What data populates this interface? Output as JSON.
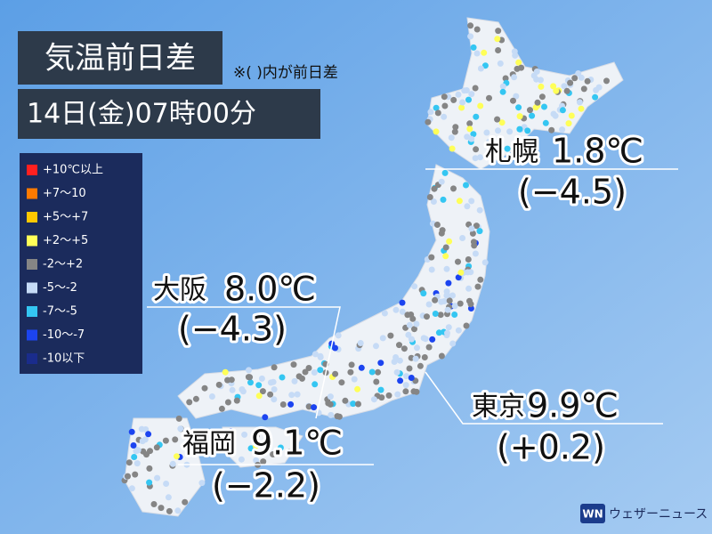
{
  "header": {
    "title": "気温前日差",
    "note": "※( )内が前日差",
    "datetime": "14日(金)07時00分"
  },
  "legend": {
    "items": [
      {
        "label": "+10℃以上",
        "color": "#ff2020"
      },
      {
        "label": "+7〜10",
        "color": "#ff7a00"
      },
      {
        "label": "+5〜+7",
        "color": "#ffc800"
      },
      {
        "label": "+2〜+5",
        "color": "#ffff58"
      },
      {
        "label": "-2〜+2",
        "color": "#858585"
      },
      {
        "label": "-5〜-2",
        "color": "#c6dbf6"
      },
      {
        "label": "-7〜-5",
        "color": "#34c6f2"
      },
      {
        "label": "-10〜-7",
        "color": "#1c44f0"
      },
      {
        "label": "-10以下",
        "color": "#1a2c8c"
      }
    ]
  },
  "cities": [
    {
      "name": "札幌",
      "temp": "1.8℃",
      "diff": "(−4.5)"
    },
    {
      "name": "大阪",
      "temp": "8.0℃",
      "diff": "(−4.3)"
    },
    {
      "name": "東京",
      "temp": "9.9℃",
      "diff": "(+0.2)"
    },
    {
      "name": "福岡",
      "temp": "9.1℃",
      "diff": "(−2.2)"
    }
  ],
  "logo": {
    "text": "ウェザーニュース"
  }
}
